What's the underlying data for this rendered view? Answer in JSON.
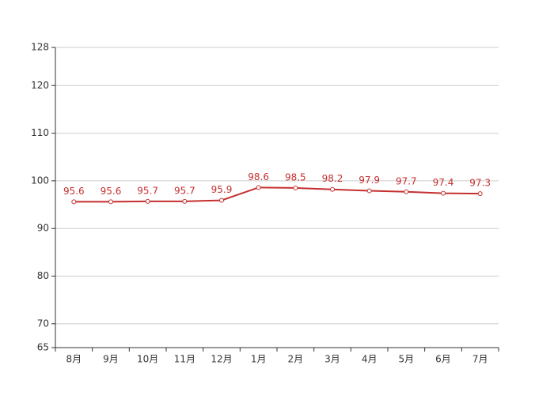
{
  "chart_data": {
    "type": "line",
    "categories": [
      "8月",
      "9月",
      "10月",
      "11月",
      "12月",
      "1月",
      "2月",
      "3月",
      "4月",
      "5月",
      "6月",
      "7月"
    ],
    "values": [
      95.6,
      95.6,
      95.7,
      95.7,
      95.9,
      98.6,
      98.5,
      98.2,
      97.9,
      97.7,
      97.4,
      97.3
    ],
    "color": "#c62f2f",
    "ylim": [
      65,
      128
    ],
    "yticks": [
      65,
      70,
      80,
      90,
      100,
      110,
      120,
      128
    ],
    "grid": true
  }
}
